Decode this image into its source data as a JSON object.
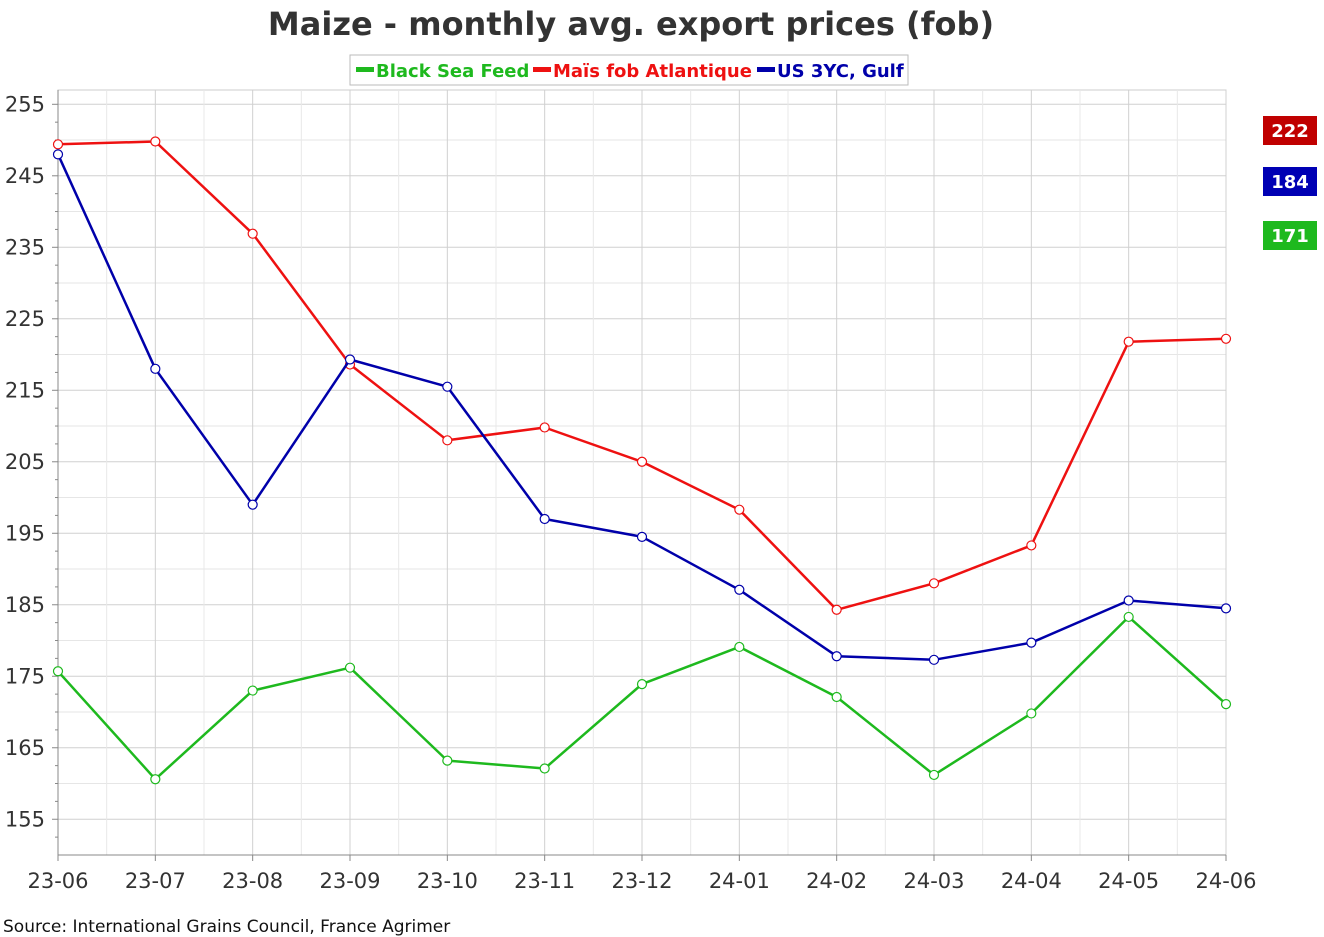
{
  "chart_data": {
    "type": "line",
    "title": "Maize - monthly avg. export prices (fob)",
    "xlabel": "",
    "ylabel": "",
    "categories": [
      "23-06",
      "23-07",
      "23-08",
      "23-09",
      "23-10",
      "23-11",
      "23-12",
      "24-01",
      "24-02",
      "24-03",
      "24-04",
      "24-05",
      "24-06"
    ],
    "ylim": [
      150,
      257
    ],
    "yticks": [
      155,
      165,
      175,
      185,
      195,
      205,
      215,
      225,
      235,
      245,
      255
    ],
    "grid": true,
    "legend": "top-center",
    "series": [
      {
        "name": "Black Sea Feed",
        "color": "#1eb91e",
        "values": [
          175.7,
          160.6,
          173.0,
          176.2,
          163.2,
          162.1,
          173.9,
          179.1,
          172.1,
          161.2,
          169.8,
          183.3,
          171.1
        ]
      },
      {
        "name": "Maïs fob Atlantique",
        "color": "#ee1111",
        "values": [
          249.4,
          249.8,
          236.9,
          218.6,
          208.0,
          209.8,
          205.0,
          198.3,
          184.3,
          188.0,
          193.3,
          221.8,
          222.2
        ]
      },
      {
        "name": "US 3YC, Gulf",
        "color": "#0000aa",
        "values": [
          248.0,
          218.0,
          199.0,
          219.3,
          215.5,
          197.0,
          194.5,
          187.1,
          177.8,
          177.3,
          179.7,
          185.6,
          184.5
        ]
      }
    ],
    "badges": [
      {
        "label": "222",
        "color": "#c00000"
      },
      {
        "label": "184",
        "color": "#0000b4"
      },
      {
        "label": "171",
        "color": "#1eb91e"
      }
    ]
  },
  "source": "Source: International Grains Council, France Agrimer"
}
